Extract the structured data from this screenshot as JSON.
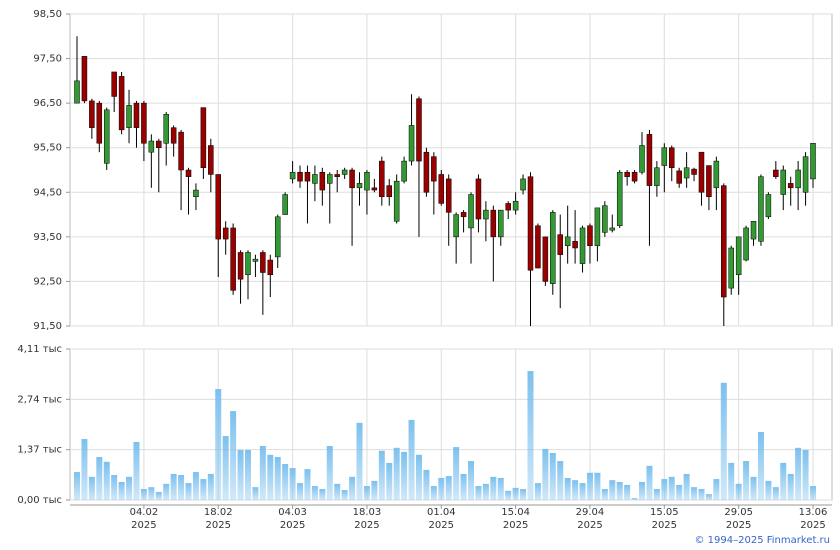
{
  "chart_data": [
    {
      "type": "candlestick",
      "open": [
        96.5,
        97.55,
        96.55,
        96.5,
        95.15,
        97.2,
        97.1,
        95.95,
        96.5,
        96.5,
        95.4,
        95.65,
        95.6,
        95.95,
        95.85,
        95.0,
        94.4,
        96.4,
        95.55,
        94.9,
        93.7,
        93.7,
        93.15,
        92.65,
        92.95,
        93.15,
        92.98,
        93.05,
        94.0,
        94.8,
        94.95,
        94.95,
        94.7,
        94.95,
        94.7,
        94.9,
        94.9,
        95.0,
        94.6,
        94.55,
        94.6,
        95.2,
        94.65,
        93.85,
        94.75,
        95.2,
        96.6,
        95.4,
        95.3,
        94.9,
        94.8,
        93.5,
        94.05,
        93.7,
        94.8,
        93.9,
        94.1,
        93.5,
        94.25,
        94.1,
        94.55,
        94.85,
        93.75,
        93.5,
        92.45,
        93.55,
        93.3,
        93.4,
        92.9,
        93.75,
        93.3,
        93.6,
        93.65,
        93.75,
        94.95,
        94.95,
        94.95,
        95.8,
        94.65,
        95.1,
        95.5,
        94.98,
        94.82,
        95.02,
        95.4,
        95.1,
        94.6,
        94.65,
        92.35,
        92.65,
        92.98,
        93.45,
        93.4,
        93.95,
        95.0,
        94.45,
        94.7,
        94.6,
        94.5,
        94.8
      ],
      "high": [
        98.0,
        97.55,
        96.6,
        96.55,
        96.4,
        97.2,
        97.2,
        96.8,
        96.55,
        96.55,
        95.8,
        95.7,
        96.3,
        96.0,
        95.9,
        95.05,
        94.7,
        96.4,
        95.7,
        94.9,
        93.85,
        93.8,
        93.2,
        93.2,
        93.1,
        93.2,
        93.1,
        94.0,
        94.5,
        95.2,
        95.1,
        95.1,
        95.1,
        95.05,
        94.95,
        95.0,
        95.05,
        95.05,
        94.95,
        95.0,
        94.8,
        95.3,
        94.8,
        94.9,
        95.3,
        96.7,
        96.65,
        95.5,
        95.4,
        95.0,
        94.9,
        94.05,
        94.1,
        94.5,
        94.9,
        94.3,
        94.2,
        94.1,
        94.3,
        94.5,
        94.9,
        94.95,
        93.8,
        93.5,
        94.1,
        94.0,
        94.2,
        94.1,
        93.75,
        93.8,
        94.15,
        94.3,
        94.0,
        95.0,
        95.0,
        95.0,
        95.85,
        95.9,
        95.2,
        95.6,
        95.55,
        95.05,
        95.4,
        95.05,
        95.4,
        95.1,
        95.3,
        94.7,
        93.3,
        93.5,
        93.75,
        93.85,
        94.9,
        94.5,
        95.2,
        95.1,
        94.85,
        95.2,
        95.4,
        95.6
      ],
      "low": [
        96.5,
        96.5,
        95.7,
        95.4,
        95.0,
        96.3,
        95.8,
        95.6,
        95.5,
        95.2,
        94.6,
        94.5,
        95.1,
        95.3,
        94.1,
        94.0,
        94.1,
        94.8,
        94.5,
        92.6,
        93.1,
        92.2,
        92.0,
        92.1,
        92.6,
        91.75,
        92.15,
        92.8,
        94.0,
        94.7,
        94.6,
        93.8,
        94.3,
        94.2,
        93.8,
        94.5,
        94.8,
        93.3,
        94.2,
        94.0,
        94.5,
        94.2,
        94.2,
        93.8,
        94.7,
        95.1,
        93.5,
        94.4,
        94.0,
        94.2,
        93.3,
        92.9,
        93.6,
        92.9,
        93.6,
        93.4,
        92.5,
        93.3,
        93.9,
        94.0,
        94.45,
        91.5,
        92.8,
        92.4,
        92.2,
        91.9,
        92.9,
        92.9,
        92.7,
        92.9,
        92.95,
        93.5,
        93.6,
        93.7,
        94.65,
        94.7,
        94.9,
        93.3,
        94.4,
        94.5,
        94.75,
        94.6,
        94.6,
        94.75,
        94.2,
        94.1,
        94.1,
        91.5,
        92.2,
        92.2,
        92.95,
        93.3,
        93.3,
        93.9,
        94.8,
        94.1,
        94.2,
        94.1,
        94.2,
        94.6
      ],
      "close": [
        97.0,
        96.55,
        95.95,
        95.6,
        96.35,
        96.65,
        95.9,
        96.45,
        95.95,
        95.6,
        95.65,
        95.5,
        96.25,
        95.6,
        95.0,
        94.85,
        94.55,
        95.05,
        94.9,
        93.45,
        93.45,
        92.3,
        92.55,
        93.15,
        93.0,
        92.7,
        92.65,
        93.95,
        94.45,
        94.95,
        94.75,
        94.75,
        94.9,
        94.55,
        94.9,
        94.85,
        95.0,
        94.6,
        94.7,
        94.95,
        94.55,
        94.4,
        94.4,
        94.75,
        95.2,
        96.0,
        95.2,
        94.5,
        94.75,
        94.25,
        94.05,
        94.0,
        93.95,
        94.45,
        93.9,
        94.1,
        93.5,
        94.1,
        94.1,
        94.3,
        94.8,
        92.75,
        92.8,
        92.5,
        94.05,
        93.1,
        93.5,
        93.25,
        93.7,
        93.3,
        94.15,
        94.2,
        93.7,
        94.95,
        94.85,
        94.75,
        95.55,
        94.65,
        95.05,
        95.5,
        95.05,
        94.7,
        95.05,
        94.9,
        94.5,
        94.4,
        95.2,
        92.15,
        93.25,
        93.5,
        93.7,
        93.85,
        94.85,
        94.45,
        94.85,
        95.0,
        94.6,
        95.0,
        95.3,
        95.6
      ],
      "up_color": "#339933",
      "down_color": "#990000",
      "ylim": [
        91.5,
        98.5
      ],
      "yticks": [
        {
          "value": 91.5,
          "label": "91,50"
        },
        {
          "value": 92.5,
          "label": "92,50"
        },
        {
          "value": 93.5,
          "label": "93,50"
        },
        {
          "value": 94.5,
          "label": "94,50"
        },
        {
          "value": 95.5,
          "label": "95,50"
        },
        {
          "value": 96.5,
          "label": "96,50"
        },
        {
          "value": 97.5,
          "label": "97,50"
        },
        {
          "value": 98.5,
          "label": "98,50"
        }
      ],
      "grid": true
    },
    {
      "type": "bar",
      "categories": [
        null,
        null,
        null,
        null,
        null,
        null,
        null,
        null,
        null,
        "04.02\n2025",
        null,
        null,
        null,
        null,
        null,
        null,
        null,
        null,
        null,
        "18.02\n2025",
        null,
        null,
        null,
        null,
        null,
        null,
        null,
        null,
        null,
        "04.03\n2025",
        null,
        null,
        null,
        null,
        null,
        null,
        null,
        null,
        null,
        "18.03\n2025",
        null,
        null,
        null,
        null,
        null,
        null,
        null,
        null,
        null,
        "01.04\n2025",
        null,
        null,
        null,
        null,
        null,
        null,
        null,
        null,
        null,
        "15.04\n2025",
        null,
        null,
        null,
        null,
        null,
        null,
        null,
        null,
        null,
        "29.04\n2025",
        null,
        null,
        null,
        null,
        null,
        null,
        null,
        null,
        null,
        "15.05\n2025",
        null,
        null,
        null,
        null,
        null,
        null,
        null,
        null,
        null,
        "29.05\n2025",
        null,
        null,
        null,
        null,
        null,
        null,
        null,
        null,
        null,
        "13.06\n2025"
      ],
      "values": [
        0.76,
        1.66,
        0.63,
        1.17,
        1.04,
        0.68,
        0.49,
        0.63,
        1.58,
        0.3,
        0.35,
        0.22,
        0.44,
        0.71,
        0.68,
        0.46,
        0.76,
        0.57,
        0.71,
        3.02,
        1.74,
        2.42,
        1.36,
        1.36,
        0.35,
        1.47,
        1.23,
        1.17,
        0.98,
        0.87,
        0.46,
        0.84,
        0.38,
        0.3,
        1.47,
        0.44,
        0.27,
        0.63,
        2.1,
        0.38,
        0.52,
        1.34,
        1.01,
        1.42,
        1.31,
        2.18,
        1.23,
        0.82,
        0.38,
        0.6,
        0.65,
        1.44,
        0.71,
        1.06,
        0.38,
        0.44,
        0.63,
        0.6,
        0.25,
        0.33,
        0.3,
        3.51,
        0.46,
        1.39,
        1.28,
        1.06,
        0.6,
        0.54,
        0.46,
        0.74,
        0.74,
        0.3,
        0.54,
        0.49,
        0.41,
        0.05,
        0.49,
        0.93,
        0.3,
        0.57,
        0.63,
        0.41,
        0.71,
        0.35,
        0.3,
        0.16,
        0.57,
        3.19,
        1.01,
        0.44,
        1.06,
        0.63,
        1.85,
        0.52,
        0.35,
        1.01,
        0.71,
        1.42,
        1.36,
        0.38
      ],
      "color": "#7cc0ee",
      "ylim": [
        0,
        4.11
      ],
      "yticks": [
        {
          "value": 0,
          "label": "0,00 тыс"
        },
        {
          "value": 1.37,
          "label": "1,37 тыс"
        },
        {
          "value": 2.74,
          "label": "2,74 тыс"
        },
        {
          "value": 4.11,
          "label": "4,11 тыс"
        }
      ],
      "grid": true
    }
  ],
  "footer": "© 1994–2025 Finmarket.ru"
}
